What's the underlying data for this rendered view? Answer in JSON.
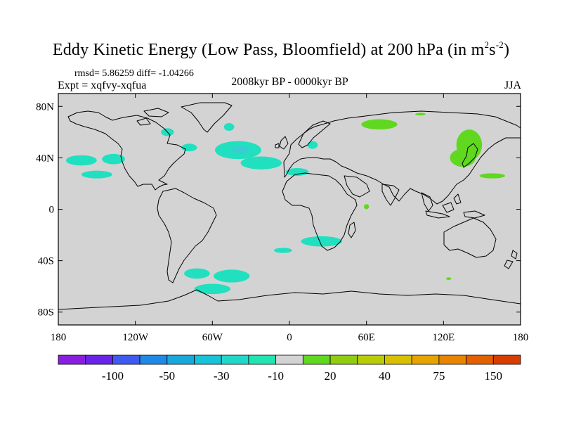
{
  "header": {
    "title_prefix": "Eddy Kinetic Energy (Low Pass, Bloomfield) at 200 hPa (in m",
    "title_sup1": "2",
    "title_mid": "s",
    "title_sup2": "-2",
    "title_suffix": ")",
    "stats": "rmsd= 5.86259 diff= -1.04266",
    "period": "2008kyr BP - 0000kyr BP",
    "expt": "Expt = xqfvy-xqfua",
    "season": "JJA"
  },
  "map": {
    "background_color": "#d3d3d3",
    "y_ticks": [
      "80N",
      "40N",
      "0",
      "40S",
      "80S"
    ],
    "y_tick_values": [
      80,
      40,
      0,
      -40,
      -80
    ],
    "x_ticks": [
      "180",
      "120W",
      "60W",
      "0",
      "60E",
      "120E",
      "180"
    ],
    "x_tick_values": [
      -180,
      -120,
      -60,
      0,
      60,
      120,
      180
    ],
    "lon_range": [
      -180,
      180
    ],
    "lat_range": [
      -90,
      90
    ],
    "anomaly_regions": [
      {
        "name": "n-pacific-west",
        "color": "#20e0c0",
        "lon": -162,
        "lat": 38,
        "rx": 12,
        "ry": 4
      },
      {
        "name": "n-pacific-mid",
        "color": "#20e0c0",
        "lon": -137,
        "lat": 39,
        "rx": 9,
        "ry": 4
      },
      {
        "name": "ne-pacific",
        "color": "#20e0c0",
        "lon": -150,
        "lat": 27,
        "rx": 12,
        "ry": 3
      },
      {
        "name": "hudson",
        "color": "#20e0c0",
        "lon": -95,
        "lat": 60,
        "rx": 5,
        "ry": 3
      },
      {
        "name": "canada",
        "color": "#20e0c0",
        "lon": -78,
        "lat": 48,
        "rx": 6,
        "ry": 3
      },
      {
        "name": "greenland-south",
        "color": "#20e0c0",
        "lon": -47,
        "lat": 64,
        "rx": 4,
        "ry": 3
      },
      {
        "name": "n-atlantic",
        "color": "#20e0c0",
        "lon": -40,
        "lat": 46,
        "rx": 18,
        "ry": 7
      },
      {
        "name": "n-atlantic-core",
        "color": "#38cdd0",
        "lon": -38,
        "lat": 46,
        "rx": 7,
        "ry": 3
      },
      {
        "name": "mid-atlantic",
        "color": "#20e0c0",
        "lon": -22,
        "lat": 36,
        "rx": 16,
        "ry": 5
      },
      {
        "name": "n-africa",
        "color": "#20e0c0",
        "lon": 6,
        "lat": 29,
        "rx": 9,
        "ry": 3
      },
      {
        "name": "europe",
        "color": "#20e0c0",
        "lon": 18,
        "lat": 50,
        "rx": 4,
        "ry": 3
      },
      {
        "name": "s-africa",
        "color": "#20e0c0",
        "lon": 25,
        "lat": -25,
        "rx": 16,
        "ry": 4
      },
      {
        "name": "s-atlantic",
        "color": "#20e0c0",
        "lon": -5,
        "lat": -32,
        "rx": 7,
        "ry": 2
      },
      {
        "name": "patagonia",
        "color": "#20e0c0",
        "lon": -72,
        "lat": -50,
        "rx": 10,
        "ry": 4
      },
      {
        "name": "s-atlantic-south",
        "color": "#20e0c0",
        "lon": -45,
        "lat": -52,
        "rx": 14,
        "ry": 5
      },
      {
        "name": "drake",
        "color": "#20e0c0",
        "lon": -60,
        "lat": -62,
        "rx": 14,
        "ry": 4
      },
      {
        "name": "siberia",
        "color": "#60d820",
        "lon": 70,
        "lat": 66,
        "rx": 14,
        "ry": 4
      },
      {
        "name": "arctic",
        "color": "#60d820",
        "lon": 102,
        "lat": 74,
        "rx": 4,
        "ry": 1
      },
      {
        "name": "ne-asia",
        "color": "#60d820",
        "lon": 140,
        "lat": 50,
        "rx": 10,
        "ry": 12
      },
      {
        "name": "nw-pacific",
        "color": "#60d820",
        "lon": 135,
        "lat": 40,
        "rx": 10,
        "ry": 7
      },
      {
        "name": "n-pacific-east",
        "color": "#60d820",
        "lon": 158,
        "lat": 26,
        "rx": 10,
        "ry": 2
      },
      {
        "name": "east-africa",
        "color": "#60d820",
        "lon": 60,
        "lat": 2,
        "rx": 2,
        "ry": 2
      },
      {
        "name": "s-indian",
        "color": "#60d820",
        "lon": 124,
        "lat": -54,
        "rx": 2,
        "ry": 1
      }
    ]
  },
  "colorbar": {
    "colors": [
      "#8a1ee0",
      "#6a24e8",
      "#3f5af0",
      "#1e8ae6",
      "#1aa8dc",
      "#18c2d8",
      "#20d8c8",
      "#22e4b0",
      "#d3d3d3",
      "#60d820",
      "#90cc10",
      "#b8cc08",
      "#d8c000",
      "#e6a400",
      "#e88400",
      "#e26000",
      "#d83c00"
    ],
    "labels": [
      "-100",
      "-50",
      "-30",
      "-10",
      "20",
      "40",
      "75",
      "150"
    ],
    "label_boundaries": [
      2,
      4,
      6,
      8,
      10,
      12,
      14,
      16
    ]
  }
}
